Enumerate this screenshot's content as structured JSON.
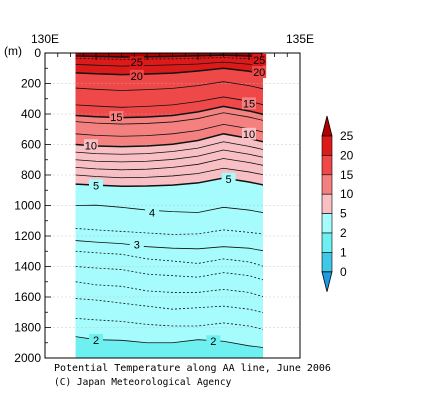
{
  "chart_data": {
    "type": "heatmap",
    "title": "Potential Temperature along AA line, June 2006",
    "credit": "(C) Japan Meteorological Agency",
    "xlabel": "",
    "ylabel": "(m)",
    "x_ticks": [
      "130E",
      "135E"
    ],
    "xlim": [
      130,
      135
    ],
    "ylim": [
      2000,
      0
    ],
    "y_ticks": [
      0,
      200,
      400,
      600,
      800,
      1000,
      1200,
      1400,
      1600,
      1800,
      2000
    ],
    "data_x_range": [
      130.6,
      134.5
    ],
    "grid": true,
    "colorbar": {
      "levels": [
        0,
        1,
        2,
        5,
        10,
        15,
        20,
        25
      ],
      "labels": [
        "0",
        "1",
        "2",
        "5",
        "10",
        "15",
        "20",
        "25"
      ],
      "colors": [
        "#1e9ae0",
        "#40c8e8",
        "#6ff0f0",
        "#a6fcfc",
        "#f8c0c4",
        "#f58080",
        "#ef4848",
        "#dc1a1a",
        "#b20000"
      ],
      "extend": "both"
    },
    "contours": [
      {
        "value": 25,
        "style": "solid",
        "labeled": true,
        "x": [
          130.6,
          131.0,
          131.5,
          132.0,
          132.5,
          133.0,
          133.5,
          134.0,
          134.5
        ],
        "depth": [
          20,
          22,
          26,
          25,
          22,
          18,
          14,
          20,
          30
        ]
      },
      {
        "value": 24,
        "style": "dotted",
        "labeled": false,
        "x": [
          130.6,
          131.0,
          131.5,
          132.0,
          132.5,
          133.0,
          133.5,
          134.0,
          134.5
        ],
        "depth": [
          35,
          38,
          42,
          40,
          38,
          34,
          30,
          38,
          48
        ]
      },
      {
        "value": 22,
        "style": "solid",
        "labeled": false,
        "x": [
          130.6,
          131.0,
          131.5,
          132.0,
          132.5,
          133.0,
          133.5,
          134.0,
          134.5
        ],
        "depth": [
          75,
          80,
          86,
          82,
          78,
          72,
          60,
          74,
          92
        ]
      },
      {
        "value": 20,
        "style": "solid",
        "labeled": true,
        "x": [
          130.6,
          131.0,
          131.5,
          132.0,
          132.5,
          133.0,
          133.5,
          134.0,
          134.5
        ],
        "depth": [
          130,
          136,
          142,
          138,
          132,
          118,
          100,
          120,
          150
        ]
      },
      {
        "value": 18,
        "style": "solid",
        "labeled": false,
        "x": [
          130.6,
          131.0,
          131.5,
          132.0,
          132.5,
          133.0,
          133.5,
          134.0,
          134.5
        ],
        "depth": [
          230,
          238,
          246,
          240,
          232,
          214,
          188,
          214,
          252
        ]
      },
      {
        "value": 16,
        "style": "solid",
        "labeled": false,
        "x": [
          130.6,
          131.0,
          131.5,
          132.0,
          132.5,
          133.0,
          133.5,
          134.0,
          134.5
        ],
        "depth": [
          340,
          348,
          356,
          350,
          340,
          318,
          288,
          316,
          358
        ]
      },
      {
        "value": 15,
        "style": "solid",
        "labeled": true,
        "x": [
          130.6,
          131.0,
          131.5,
          132.0,
          132.5,
          133.0,
          133.5,
          134.0,
          134.5
        ],
        "depth": [
          410,
          418,
          424,
          420,
          410,
          386,
          350,
          380,
          420
        ]
      },
      {
        "value": 14,
        "style": "solid",
        "labeled": false,
        "x": [
          130.6,
          131.0,
          131.5,
          132.0,
          132.5,
          133.0,
          133.5,
          134.0,
          134.5
        ],
        "depth": [
          450,
          460,
          466,
          462,
          452,
          430,
          392,
          420,
          460
        ]
      },
      {
        "value": 12,
        "style": "solid",
        "labeled": false,
        "x": [
          130.6,
          131.0,
          131.5,
          132.0,
          132.5,
          133.0,
          133.5,
          134.0,
          134.5
        ],
        "depth": [
          530,
          540,
          546,
          542,
          530,
          508,
          468,
          496,
          536
        ]
      },
      {
        "value": 10,
        "style": "solid",
        "labeled": true,
        "x": [
          130.6,
          131.0,
          131.5,
          132.0,
          132.5,
          133.0,
          133.5,
          134.0,
          134.5
        ],
        "depth": [
          600,
          610,
          614,
          610,
          598,
          574,
          530,
          560,
          600
        ]
      },
      {
        "value": 9,
        "style": "solid",
        "labeled": false,
        "x": [
          130.6,
          131.0,
          131.5,
          132.0,
          132.5,
          133.0,
          133.5,
          134.0,
          134.5
        ],
        "depth": [
          650,
          660,
          664,
          660,
          646,
          624,
          582,
          612,
          650
        ]
      },
      {
        "value": 8,
        "style": "solid",
        "labeled": false,
        "x": [
          130.6,
          131.0,
          131.5,
          132.0,
          132.5,
          133.0,
          133.5,
          134.0,
          134.5
        ],
        "depth": [
          700,
          710,
          714,
          710,
          698,
          676,
          636,
          664,
          700
        ]
      },
      {
        "value": 7,
        "style": "solid",
        "labeled": false,
        "x": [
          130.6,
          131.0,
          131.5,
          132.0,
          132.5,
          133.0,
          133.5,
          134.0,
          134.5
        ],
        "depth": [
          750,
          760,
          766,
          762,
          750,
          730,
          692,
          718,
          752
        ]
      },
      {
        "value": 6,
        "style": "solid",
        "labeled": false,
        "x": [
          130.6,
          131.0,
          131.5,
          132.0,
          132.5,
          133.0,
          133.5,
          134.0,
          134.5
        ],
        "depth": [
          800,
          810,
          818,
          815,
          806,
          790,
          756,
          780,
          812
        ]
      },
      {
        "value": 5,
        "style": "solid",
        "labeled": true,
        "x": [
          130.6,
          131.0,
          131.5,
          132.0,
          132.5,
          133.0,
          133.5,
          134.0,
          134.5
        ],
        "depth": [
          860,
          866,
          874,
          872,
          866,
          852,
          820,
          846,
          880
        ]
      },
      {
        "value": 4,
        "style": "solid",
        "labeled": true,
        "x": [
          130.6,
          131.0,
          131.5,
          132.0,
          132.5,
          133.0,
          133.5,
          134.0,
          134.5
        ],
        "depth": [
          1000,
          998,
          1012,
          1030,
          1040,
          1046,
          1012,
          1030,
          1060
        ]
      },
      {
        "value": 3.5,
        "style": "dotted",
        "labeled": false,
        "x": [
          130.6,
          131.0,
          131.5,
          132.0,
          132.5,
          133.0,
          133.5,
          134.0,
          134.5
        ],
        "depth": [
          1150,
          1160,
          1170,
          1180,
          1190,
          1186,
          1160,
          1176,
          1196
        ]
      },
      {
        "value": 3,
        "style": "solid",
        "labeled": true,
        "x": [
          130.6,
          131.0,
          131.5,
          132.0,
          132.5,
          133.0,
          133.5,
          134.0,
          134.5
        ],
        "depth": [
          1230,
          1240,
          1250,
          1270,
          1280,
          1284,
          1270,
          1280,
          1310
        ]
      },
      {
        "value": 2.8,
        "style": "dotted",
        "labeled": false,
        "x": [
          130.6,
          131.0,
          131.5,
          132.0,
          132.5,
          133.0,
          133.5,
          134.0,
          134.5
        ],
        "depth": [
          1300,
          1310,
          1320,
          1350,
          1364,
          1380,
          1350,
          1370,
          1420
        ]
      },
      {
        "value": 2.6,
        "style": "dotted",
        "labeled": false,
        "x": [
          130.6,
          131.0,
          131.5,
          132.0,
          132.5,
          133.0,
          133.5,
          134.0,
          134.5
        ],
        "depth": [
          1400,
          1410,
          1420,
          1450,
          1460,
          1470,
          1440,
          1460,
          1510
        ]
      },
      {
        "value": 2.4,
        "style": "dotted",
        "labeled": false,
        "x": [
          130.6,
          131.0,
          131.5,
          132.0,
          132.5,
          133.0,
          133.5,
          134.0,
          134.5
        ],
        "depth": [
          1500,
          1520,
          1530,
          1560,
          1570,
          1570,
          1550,
          1570,
          1620
        ]
      },
      {
        "value": 2.2,
        "style": "dotted",
        "labeled": false,
        "x": [
          130.6,
          131.0,
          131.5,
          132.0,
          132.5,
          133.0,
          133.5,
          134.0,
          134.5
        ],
        "depth": [
          1610,
          1620,
          1640,
          1660,
          1680,
          1670,
          1660,
          1680,
          1720
        ]
      },
      {
        "value": 2.1,
        "style": "dotted",
        "labeled": false,
        "x": [
          130.6,
          131.0,
          131.5,
          132.0,
          132.5,
          133.0,
          133.5,
          134.0,
          134.5
        ],
        "depth": [
          1740,
          1750,
          1760,
          1780,
          1790,
          1790,
          1770,
          1790,
          1830
        ]
      },
      {
        "value": 2,
        "style": "solid",
        "labeled": true,
        "x": [
          130.6,
          131.0,
          131.5,
          132.0,
          132.5,
          133.0,
          133.5,
          134.0,
          134.5
        ],
        "depth": [
          1860,
          1880,
          1884,
          1900,
          1900,
          1880,
          1890,
          1920,
          1940
        ]
      }
    ],
    "contour_labels": [
      {
        "text": "25",
        "x": 131.8,
        "depth": 60
      },
      {
        "text": "20",
        "x": 131.8,
        "depth": 150
      },
      {
        "text": "15",
        "x": 131.4,
        "depth": 420
      },
      {
        "text": "10",
        "x": 130.9,
        "depth": 605
      },
      {
        "text": "5",
        "x": 131.0,
        "depth": 868
      },
      {
        "text": "4",
        "x": 132.1,
        "depth": 1045
      },
      {
        "text": "3",
        "x": 131.8,
        "depth": 1255
      },
      {
        "text": "2",
        "x": 131.0,
        "depth": 1882
      },
      {
        "text": "25",
        "x": 134.2,
        "depth": 45
      },
      {
        "text": "20",
        "x": 134.2,
        "depth": 125
      },
      {
        "text": "15",
        "x": 134.0,
        "depth": 330
      },
      {
        "text": "10",
        "x": 134.0,
        "depth": 530
      },
      {
        "text": "5",
        "x": 133.6,
        "depth": 825
      },
      {
        "text": "2",
        "x": 133.3,
        "depth": 1890
      }
    ]
  }
}
